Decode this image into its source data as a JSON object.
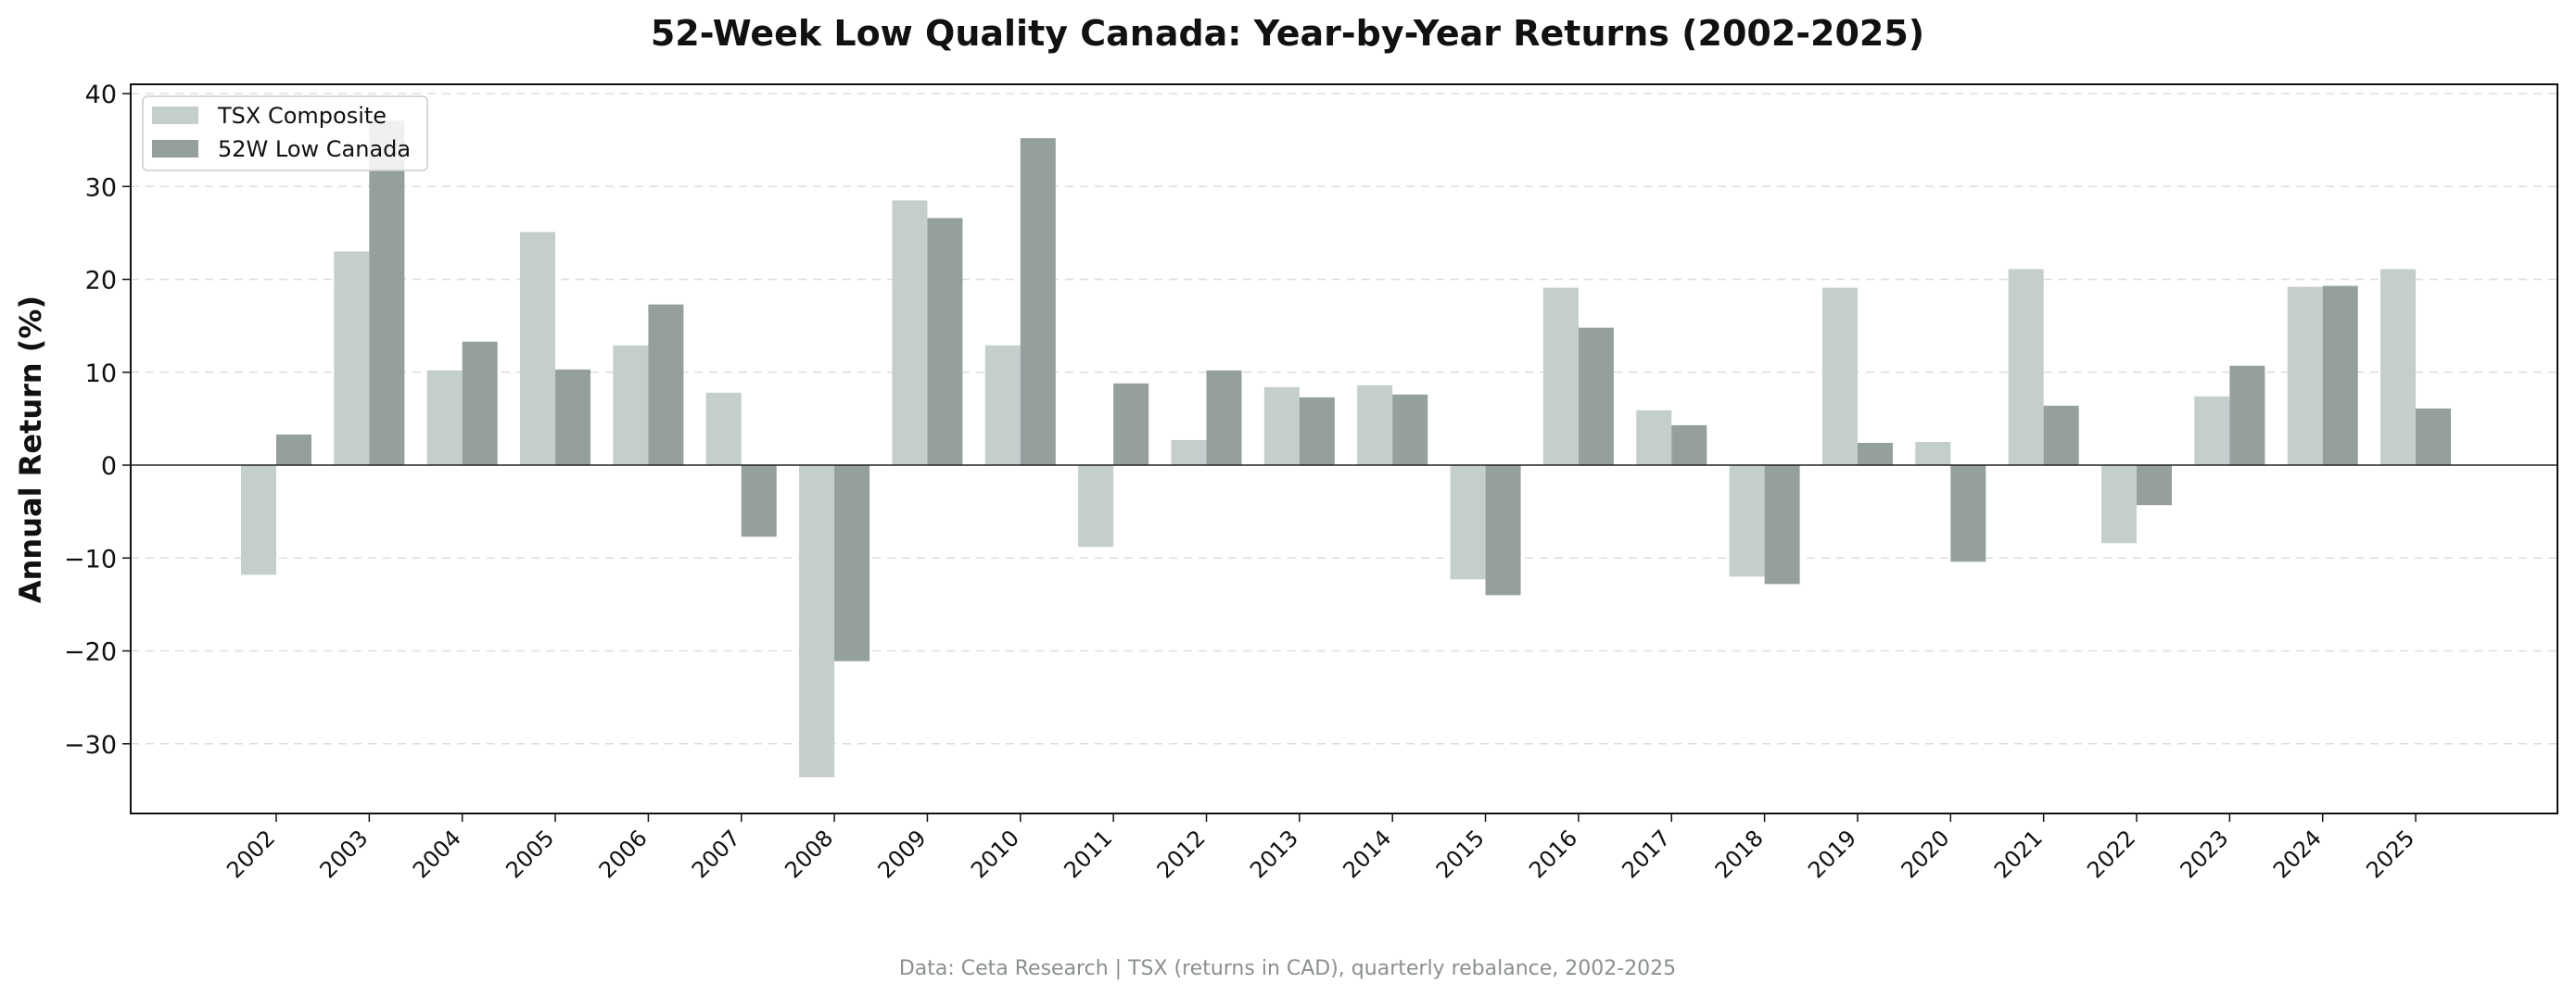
{
  "chart_data": {
    "type": "bar",
    "title": "52-Week Low Quality Canada: Year-by-Year Returns (2002-2025)",
    "xlabel": "",
    "ylabel": "Annual Return (%)",
    "ylim": [
      -37.5,
      41
    ],
    "yticks": [
      -30,
      -20,
      -10,
      0,
      10,
      20,
      30,
      40
    ],
    "ytick_labels": [
      "−30",
      "−20",
      "−10",
      "0",
      "10",
      "20",
      "30",
      "40"
    ],
    "grid": "horizontal dashed",
    "legend": "top-left",
    "categories": [
      "2002",
      "2003",
      "2004",
      "2005",
      "2006",
      "2007",
      "2008",
      "2009",
      "2010",
      "2011",
      "2012",
      "2013",
      "2014",
      "2015",
      "2016",
      "2017",
      "2018",
      "2019",
      "2020",
      "2021",
      "2022",
      "2023",
      "2024",
      "2025"
    ],
    "series": [
      {
        "name": "TSX Composite",
        "color": "#c4cecd",
        "values": [
          -11.8,
          23.0,
          10.2,
          25.1,
          12.9,
          7.8,
          -33.6,
          28.5,
          12.9,
          -8.8,
          2.7,
          8.4,
          8.6,
          -12.3,
          19.1,
          5.9,
          -12.0,
          19.1,
          2.5,
          21.1,
          -8.4,
          7.4,
          19.2,
          21.1
        ]
      },
      {
        "name": "52W Low Canada",
        "color": "#949f9e",
        "values": [
          3.3,
          37.1,
          13.3,
          10.3,
          17.3,
          -7.7,
          -21.1,
          26.6,
          35.2,
          8.8,
          10.2,
          7.3,
          7.6,
          -14.0,
          14.8,
          4.3,
          -12.8,
          2.4,
          -10.4,
          6.4,
          -4.3,
          10.7,
          19.3,
          6.1
        ]
      }
    ],
    "footer": "Data: Ceta Research | TSX (returns in CAD), quarterly rebalance, 2002-2025"
  }
}
